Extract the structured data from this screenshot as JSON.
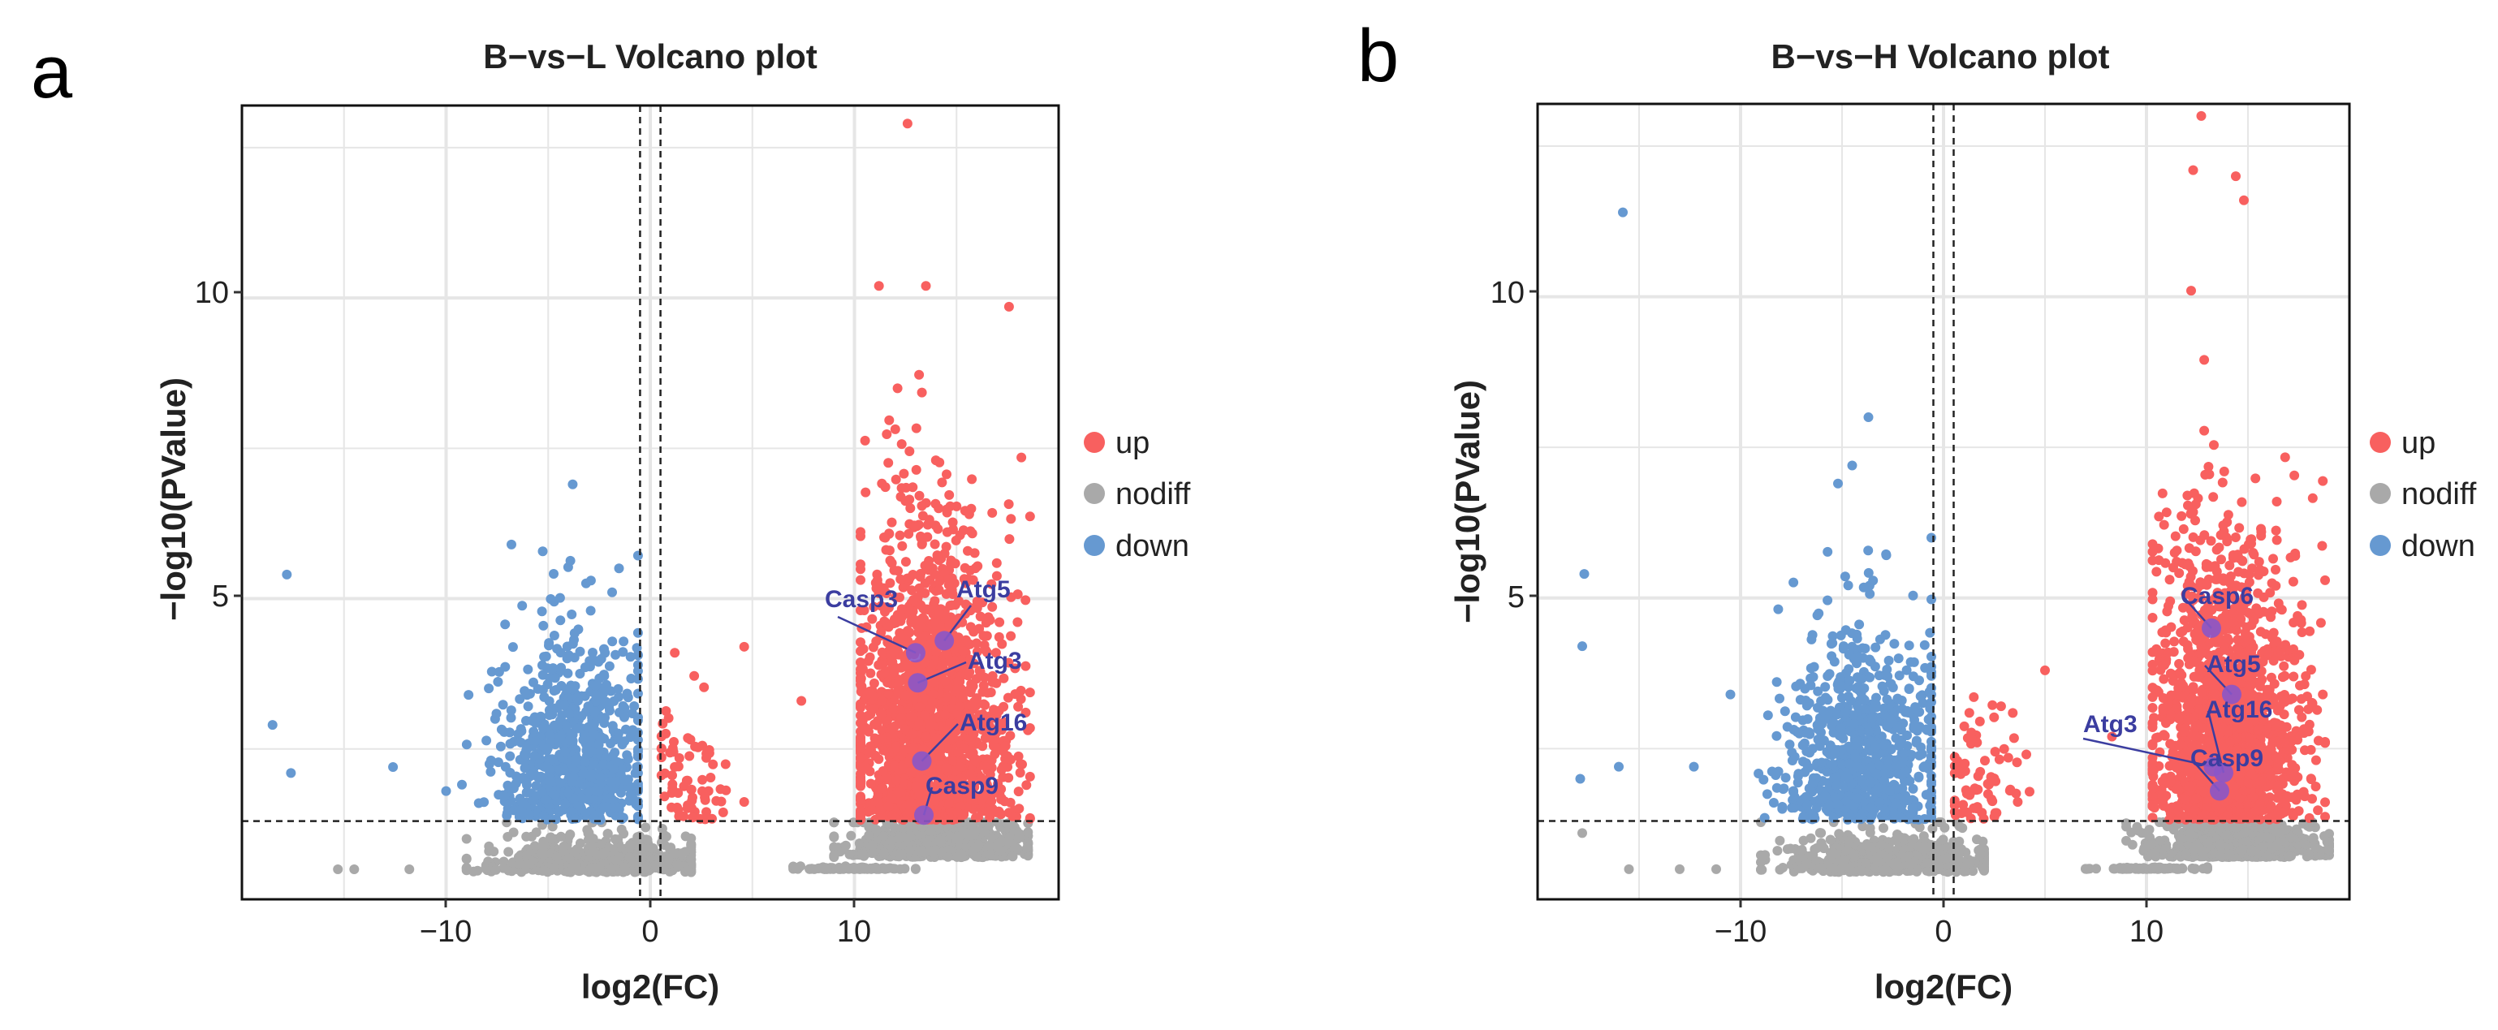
{
  "colors": {
    "up": "#f8605f",
    "nodiff": "#a9a9a9",
    "down": "#6699d1",
    "highlight": "#8a57c8",
    "annotation": "#3b3da0",
    "grid": "#e6e6e6"
  },
  "chart_data": [
    {
      "panel_letter": "a",
      "type": "scatter",
      "title": "B−vs−L Volcano plot",
      "xlabel": "log2(FC)",
      "ylabel": "−log10(PValue)",
      "xlim": [
        -20,
        20
      ],
      "ylim": [
        0,
        13.2
      ],
      "xticks": [
        -10,
        0,
        10
      ],
      "xtick_labels": [
        "−10",
        "0",
        "10"
      ],
      "yticks": [
        5,
        10
      ],
      "ytick_labels": [
        "5",
        "10"
      ],
      "grid": true,
      "thresholds": {
        "log2fc": [
          -0.5,
          0.5
        ],
        "neg_log10_p": 1.3
      },
      "legend": {
        "position": "right",
        "entries": [
          "up",
          "nodiff",
          "down"
        ]
      },
      "highlighted_genes": [
        {
          "label": "Casp3",
          "x": 13.0,
          "y": 4.1
        },
        {
          "label": "Atg5",
          "x": 14.4,
          "y": 4.3
        },
        {
          "label": "Atg3",
          "x": 13.1,
          "y": 3.6
        },
        {
          "label": "Atg16",
          "x": 13.3,
          "y": 2.3
        },
        {
          "label": "Casp9",
          "x": 13.4,
          "y": 1.4
        }
      ],
      "outliers": [
        {
          "group": "down",
          "x": -17.8,
          "y": 5.4
        },
        {
          "group": "down",
          "x": -18.5,
          "y": 2.9
        },
        {
          "group": "down",
          "x": -17.6,
          "y": 2.1
        },
        {
          "group": "down",
          "x": -12.6,
          "y": 2.2
        },
        {
          "group": "down",
          "x": -10.0,
          "y": 1.8
        },
        {
          "group": "down",
          "x": -8.9,
          "y": 3.4
        },
        {
          "group": "down",
          "x": -8.4,
          "y": 1.6
        },
        {
          "group": "down",
          "x": -6.8,
          "y": 5.9
        },
        {
          "group": "down",
          "x": -3.8,
          "y": 6.9
        },
        {
          "group": "up",
          "x": 12.6,
          "y": 12.9
        },
        {
          "group": "up",
          "x": 11.2,
          "y": 10.2
        },
        {
          "group": "up",
          "x": 13.5,
          "y": 10.2
        },
        {
          "group": "up",
          "x": 7.4,
          "y": 3.3
        },
        {
          "group": "up",
          "x": 4.6,
          "y": 4.2
        },
        {
          "group": "up",
          "x": 1.2,
          "y": 4.1
        },
        {
          "group": "nodiff",
          "x": -15.3,
          "y": 0.5
        },
        {
          "group": "nodiff",
          "x": -11.8,
          "y": 0.5
        },
        {
          "group": "nodiff",
          "x": -14.5,
          "y": 0.5
        }
      ],
      "clusters": [
        {
          "group": "down",
          "cx": -3.8,
          "cy": 2.6,
          "sx": 1.8,
          "sy": 1.1,
          "n": 800,
          "xmin": -11.5,
          "xmax": -0.6,
          "ymin": 1.32,
          "ymax": 6.8
        },
        {
          "group": "up",
          "cx": 13.6,
          "cy": 3.4,
          "sx": 1.8,
          "sy": 1.7,
          "n": 1700,
          "xmin": 10.3,
          "xmax": 18.6,
          "ymin": 1.32,
          "ymax": 10.0
        },
        {
          "group": "up",
          "cx": 2.0,
          "cy": 2.0,
          "sx": 1.0,
          "sy": 0.7,
          "n": 70,
          "xmin": 0.55,
          "xmax": 4.6,
          "ymin": 1.32,
          "ymax": 4.0
        },
        {
          "group": "nodiff",
          "cx": -2.5,
          "cy": 0.45,
          "sx": 2.6,
          "sy": 0.35,
          "n": 600,
          "xmin": -9.0,
          "xmax": 2.0,
          "ymin": 0.0,
          "ymax": 1.28
        },
        {
          "group": "nodiff",
          "cx": 14.2,
          "cy": 0.7,
          "sx": 2.2,
          "sy": 0.35,
          "n": 700,
          "xmin": 9.0,
          "xmax": 18.5,
          "ymin": 0.3,
          "ymax": 1.28
        },
        {
          "group": "nodiff",
          "cx": 10.0,
          "cy": 0.5,
          "sx": 1.5,
          "sy": 0.02,
          "n": 80,
          "xmin": 7.0,
          "xmax": 13.0,
          "ymin": 0.45,
          "ymax": 0.55
        }
      ]
    },
    {
      "panel_letter": "b",
      "type": "scatter",
      "title": "B−vs−H Volcano plot",
      "xlabel": "log2(FC)",
      "ylabel": "−log10(PValue)",
      "xlim": [
        -20,
        20
      ],
      "ylim": [
        0,
        13.2
      ],
      "xticks": [
        -10,
        0,
        10
      ],
      "xtick_labels": [
        "−10",
        "0",
        "10"
      ],
      "yticks": [
        5,
        10
      ],
      "ytick_labels": [
        "5",
        "10"
      ],
      "grid": true,
      "thresholds": {
        "log2fc": [
          -0.5,
          0.5
        ],
        "neg_log10_p": 1.3
      },
      "legend": {
        "position": "right",
        "entries": [
          "up",
          "nodiff",
          "down"
        ]
      },
      "highlighted_genes": [
        {
          "label": "Casp6",
          "x": 13.2,
          "y": 4.5
        },
        {
          "label": "Atg5",
          "x": 14.2,
          "y": 3.4
        },
        {
          "label": "Atg3",
          "x": 13.3,
          "y": 2.2
        },
        {
          "label": "Atg16",
          "x": 13.8,
          "y": 2.1
        },
        {
          "label": "Casp9",
          "x": 13.6,
          "y": 1.8
        }
      ],
      "outliers": [
        {
          "group": "down",
          "x": -15.8,
          "y": 11.4
        },
        {
          "group": "down",
          "x": -17.7,
          "y": 5.4
        },
        {
          "group": "down",
          "x": -17.8,
          "y": 4.2
        },
        {
          "group": "down",
          "x": -17.9,
          "y": 2.0
        },
        {
          "group": "down",
          "x": -16.0,
          "y": 2.2
        },
        {
          "group": "down",
          "x": -12.3,
          "y": 2.2
        },
        {
          "group": "down",
          "x": -10.5,
          "y": 3.4
        },
        {
          "group": "down",
          "x": -3.7,
          "y": 8.0
        },
        {
          "group": "down",
          "x": -5.2,
          "y": 6.9
        },
        {
          "group": "down",
          "x": -4.5,
          "y": 7.2
        },
        {
          "group": "up",
          "x": 12.7,
          "y": 13.0
        },
        {
          "group": "up",
          "x": 12.3,
          "y": 12.1
        },
        {
          "group": "up",
          "x": 14.4,
          "y": 12.0
        },
        {
          "group": "up",
          "x": 14.8,
          "y": 11.6
        },
        {
          "group": "up",
          "x": 12.2,
          "y": 10.1
        },
        {
          "group": "up",
          "x": 8.3,
          "y": 2.7
        },
        {
          "group": "up",
          "x": 5.0,
          "y": 3.8
        },
        {
          "group": "nodiff",
          "x": -17.8,
          "y": 1.1
        },
        {
          "group": "nodiff",
          "x": -15.5,
          "y": 0.5
        },
        {
          "group": "nodiff",
          "x": -11.2,
          "y": 0.5
        },
        {
          "group": "nodiff",
          "x": -13.0,
          "y": 0.5
        }
      ],
      "clusters": [
        {
          "group": "down",
          "cx": -4.0,
          "cy": 2.6,
          "sx": 1.9,
          "sy": 1.1,
          "n": 800,
          "xmin": -11.5,
          "xmax": -0.6,
          "ymin": 1.32,
          "ymax": 6.0
        },
        {
          "group": "up",
          "cx": 14.0,
          "cy": 3.4,
          "sx": 1.8,
          "sy": 1.6,
          "n": 1700,
          "xmin": 10.3,
          "xmax": 18.8,
          "ymin": 1.32,
          "ymax": 9.8
        },
        {
          "group": "up",
          "cx": 2.0,
          "cy": 2.0,
          "sx": 1.0,
          "sy": 0.7,
          "n": 70,
          "xmin": 0.55,
          "xmax": 4.6,
          "ymin": 1.32,
          "ymax": 3.8
        },
        {
          "group": "nodiff",
          "cx": -2.5,
          "cy": 0.45,
          "sx": 2.6,
          "sy": 0.35,
          "n": 600,
          "xmin": -9.0,
          "xmax": 2.0,
          "ymin": 0.0,
          "ymax": 1.28
        },
        {
          "group": "nodiff",
          "cx": 14.5,
          "cy": 0.7,
          "sx": 2.2,
          "sy": 0.35,
          "n": 700,
          "xmin": 9.0,
          "xmax": 19.0,
          "ymin": 0.3,
          "ymax": 1.28
        },
        {
          "group": "nodiff",
          "cx": 10.0,
          "cy": 0.5,
          "sx": 1.5,
          "sy": 0.02,
          "n": 80,
          "xmin": 7.0,
          "xmax": 13.0,
          "ymin": 0.45,
          "ymax": 0.55
        }
      ]
    }
  ]
}
